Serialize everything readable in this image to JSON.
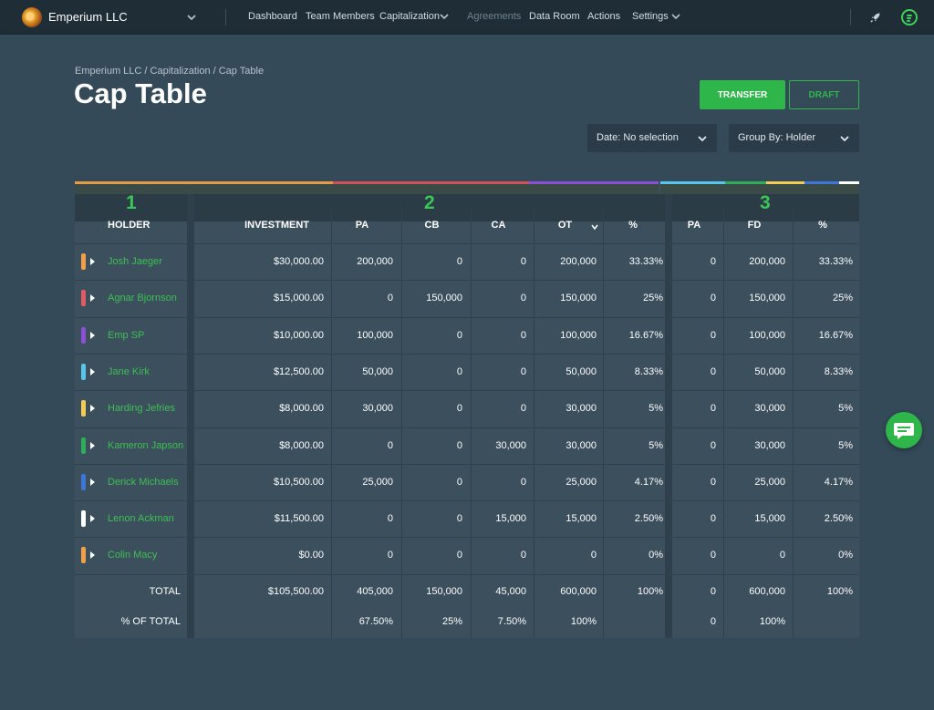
{
  "topbar": {
    "company": "Emperium LLC",
    "nav": {
      "dashboard": "Dashboard",
      "team_members": "Team Members",
      "capitalization": "Capitalization",
      "agreements": "Agreements",
      "data_room": "Data Room",
      "actions": "Actions",
      "settings": "Settings"
    },
    "icons": [
      "chevron-down-icon",
      "rocket-icon",
      "menu-icon"
    ],
    "accent_color": "#3fd05a"
  },
  "breadcrumb": "Emperium LLC / Capitalization  / Cap Table",
  "page_title": "Cap Table",
  "buttons": {
    "transfer": "TRANSFER",
    "draft": "DRAFT"
  },
  "filters": {
    "date": "Date: No selection",
    "group_by": "Group By: Holder"
  },
  "table": {
    "group_numbers": [
      "1",
      "2",
      "3"
    ],
    "headers": {
      "holder": "HOLDER",
      "investment": "INVESTMENT",
      "pa": "PA",
      "cb": "CB",
      "ca": "CA",
      "ot": "OT",
      "pct": "%",
      "pa2": "PA",
      "fd": "FD",
      "pct2": "%"
    },
    "rows": [
      {
        "name": "Josh Jaeger",
        "color": "#f0a04a",
        "investment": "$30,000.00",
        "pa": "200,000",
        "cb": "0",
        "ca": "0",
        "ot": "200,000",
        "pct": "33.33%",
        "pa2": "0",
        "fd": "200,000",
        "pct2": "33.33%"
      },
      {
        "name": "Agnar Bjornson",
        "color": "#e15b62",
        "investment": "$15,000.00",
        "pa": "0",
        "cb": "150,000",
        "ca": "0",
        "ot": "150,000",
        "pct": "25%",
        "pa2": "0",
        "fd": "150,000",
        "pct2": "25%"
      },
      {
        "name": "Emp SP",
        "color": "#8b4fd8",
        "investment": "$10,000.00",
        "pa": "100,000",
        "cb": "0",
        "ca": "0",
        "ot": "100,000",
        "pct": "16.67%",
        "pa2": "0",
        "fd": "100,000",
        "pct2": "16.67%"
      },
      {
        "name": "Jane Kirk",
        "color": "#58c6ec",
        "investment": "$12,500.00",
        "pa": "50,000",
        "cb": "0",
        "ca": "0",
        "ot": "50,000",
        "pct": "8.33%",
        "pa2": "0",
        "fd": "50,000",
        "pct2": "8.33%"
      },
      {
        "name": "Harding Jefries",
        "color": "#f2cc55",
        "investment": "$8,000.00",
        "pa": "30,000",
        "cb": "0",
        "ca": "0",
        "ot": "30,000",
        "pct": "5%",
        "pa2": "0",
        "fd": "30,000",
        "pct2": "5%"
      },
      {
        "name": "Kameron Japson",
        "color": "#2fae5a",
        "investment": "$8,000.00",
        "pa": "0",
        "cb": "0",
        "ca": "30,000",
        "ot": "30,000",
        "pct": "5%",
        "pa2": "0",
        "fd": "30,000",
        "pct2": "5%"
      },
      {
        "name": "Derick Michaels",
        "color": "#3f74d8",
        "investment": "$10,500.00",
        "pa": "25,000",
        "cb": "0",
        "ca": "0",
        "ot": "25,000",
        "pct": "4.17%",
        "pa2": "0",
        "fd": "25,000",
        "pct2": "4.17%"
      },
      {
        "name": "Lenon Ackman",
        "color": "#ffffff",
        "investment": "$11,500.00",
        "pa": "0",
        "cb": "0",
        "ca": "15,000",
        "ot": "15,000",
        "pct": "2.50%",
        "pa2": "0",
        "fd": "15,000",
        "pct2": "2.50%"
      },
      {
        "name": "Colin Macy",
        "color": "#f0a04a",
        "investment": "$0.00",
        "pa": "0",
        "cb": "0",
        "ca": "0",
        "ot": "0",
        "pct": "0%",
        "pa2": "0",
        "fd": "0",
        "pct2": "0%"
      }
    ],
    "total": {
      "label": "TOTAL",
      "investment": "$105,500.00",
      "pa": "405,000",
      "cb": "150,000",
      "ca": "45,000",
      "ot": "600,000",
      "pct": "100%",
      "pa2": "0",
      "fd": "600,000",
      "pct2": "100%"
    },
    "pct_of_total": {
      "label": "% OF TOTAL",
      "pa": "67.50%",
      "cb": "25%",
      "ca": "7.50%",
      "ot": "100%",
      "pa2": "0",
      "fd": "100%"
    }
  }
}
